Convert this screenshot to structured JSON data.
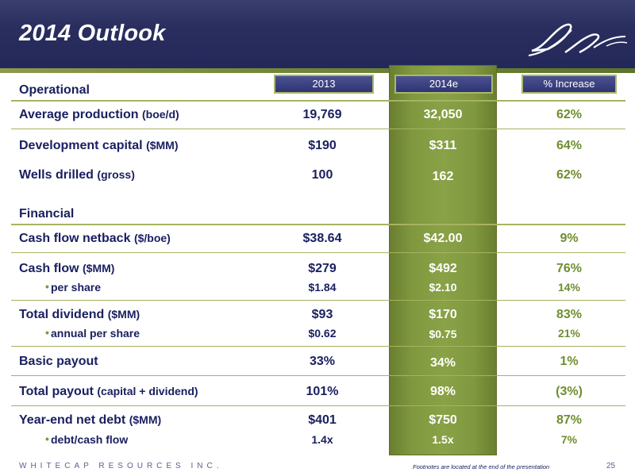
{
  "title": "2014 Outlook",
  "columns": {
    "y2013": "2013",
    "y2014": "2014e",
    "pct": "% Increase"
  },
  "sections": {
    "operational": "Operational",
    "financial": "Financial"
  },
  "rows": [
    {
      "label": "Average production",
      "unit": "(boe/d)",
      "v2013": "19,769",
      "v2014": "32,050",
      "pct": "62%"
    },
    {
      "label": "Development capital",
      "unit": "($MM)",
      "v2013": "$190",
      "v2014": "$311",
      "pct": "64%"
    },
    {
      "label": "Wells drilled",
      "unit": "(gross)",
      "v2013": "100",
      "v2014": "162",
      "pct": "62%"
    },
    {
      "label": "Cash flow netback",
      "unit": "($/boe)",
      "v2013": "$38.64",
      "v2014": "$42.00",
      "pct": "9%"
    },
    {
      "label": "Cash flow",
      "unit": "($MM)",
      "v2013": "$279",
      "v2014": "$492",
      "pct": "76%"
    },
    {
      "label": "per share",
      "unit": "",
      "v2013": "$1.84",
      "v2014": "$2.10",
      "pct": "14%"
    },
    {
      "label": "Total dividend",
      "unit": "($MM)",
      "v2013": "$93",
      "v2014": "$170",
      "pct": "83%"
    },
    {
      "label": "annual per share",
      "unit": "",
      "v2013": "$0.62",
      "v2014": "$0.75",
      "pct": "21%"
    },
    {
      "label": "Basic payout",
      "unit": "",
      "v2013": "33%",
      "v2014": "34%",
      "pct": "1%"
    },
    {
      "label": "Total payout",
      "unit": "(capital + dividend)",
      "v2013": "101%",
      "v2014": "98%",
      "pct": "(3%)"
    },
    {
      "label": "Year-end net debt",
      "unit": "($MM)",
      "v2013": "$401",
      "v2014": "$750",
      "pct": "87%"
    },
    {
      "label": "debt/cash flow",
      "unit": "",
      "v2013": "1.4x",
      "v2014": "1.5x",
      "pct": "7%"
    }
  ],
  "bullet": "•",
  "footer": {
    "company": "WHITECAP RESOURCES INC.",
    "note": "Footnotes are located at the end of the presentation",
    "page": "25"
  },
  "colors": {
    "navy": "#23285a",
    "olive": "#7f973e",
    "green_text": "#6f8e2f"
  },
  "icons": {
    "logo": "whitecap-wave-logo"
  }
}
